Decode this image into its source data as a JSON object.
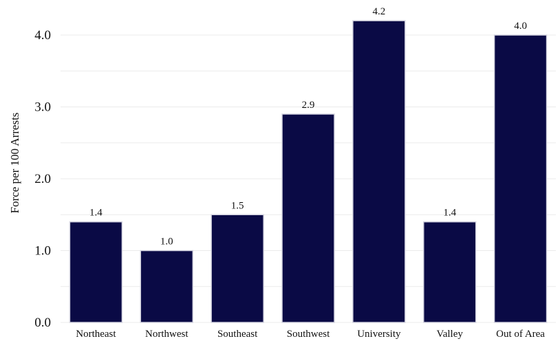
{
  "chart_data": {
    "type": "bar",
    "title": "",
    "xlabel": "",
    "ylabel": "Force per 100 Arrests",
    "categories": [
      "Northeast",
      "Northwest",
      "Southeast",
      "Southwest",
      "University",
      "Valley",
      "Out of Area"
    ],
    "values": [
      1.4,
      1.0,
      1.5,
      2.9,
      4.2,
      1.4,
      4.0
    ],
    "value_labels": [
      "1.4",
      "1.0",
      "1.5",
      "2.9",
      "4.2",
      "1.4",
      "4.0"
    ],
    "yticks": [
      0.0,
      1.0,
      2.0,
      3.0,
      4.0
    ],
    "ytick_labels": [
      "0.0",
      "1.0",
      "2.0",
      "3.0",
      "4.0"
    ],
    "ylim": [
      0,
      4.4
    ],
    "grid": true,
    "legend": "none",
    "colors": {
      "bar": "#0a0a45",
      "bar_outline": "#d4d4e0",
      "grid": "#ebebeb"
    }
  }
}
